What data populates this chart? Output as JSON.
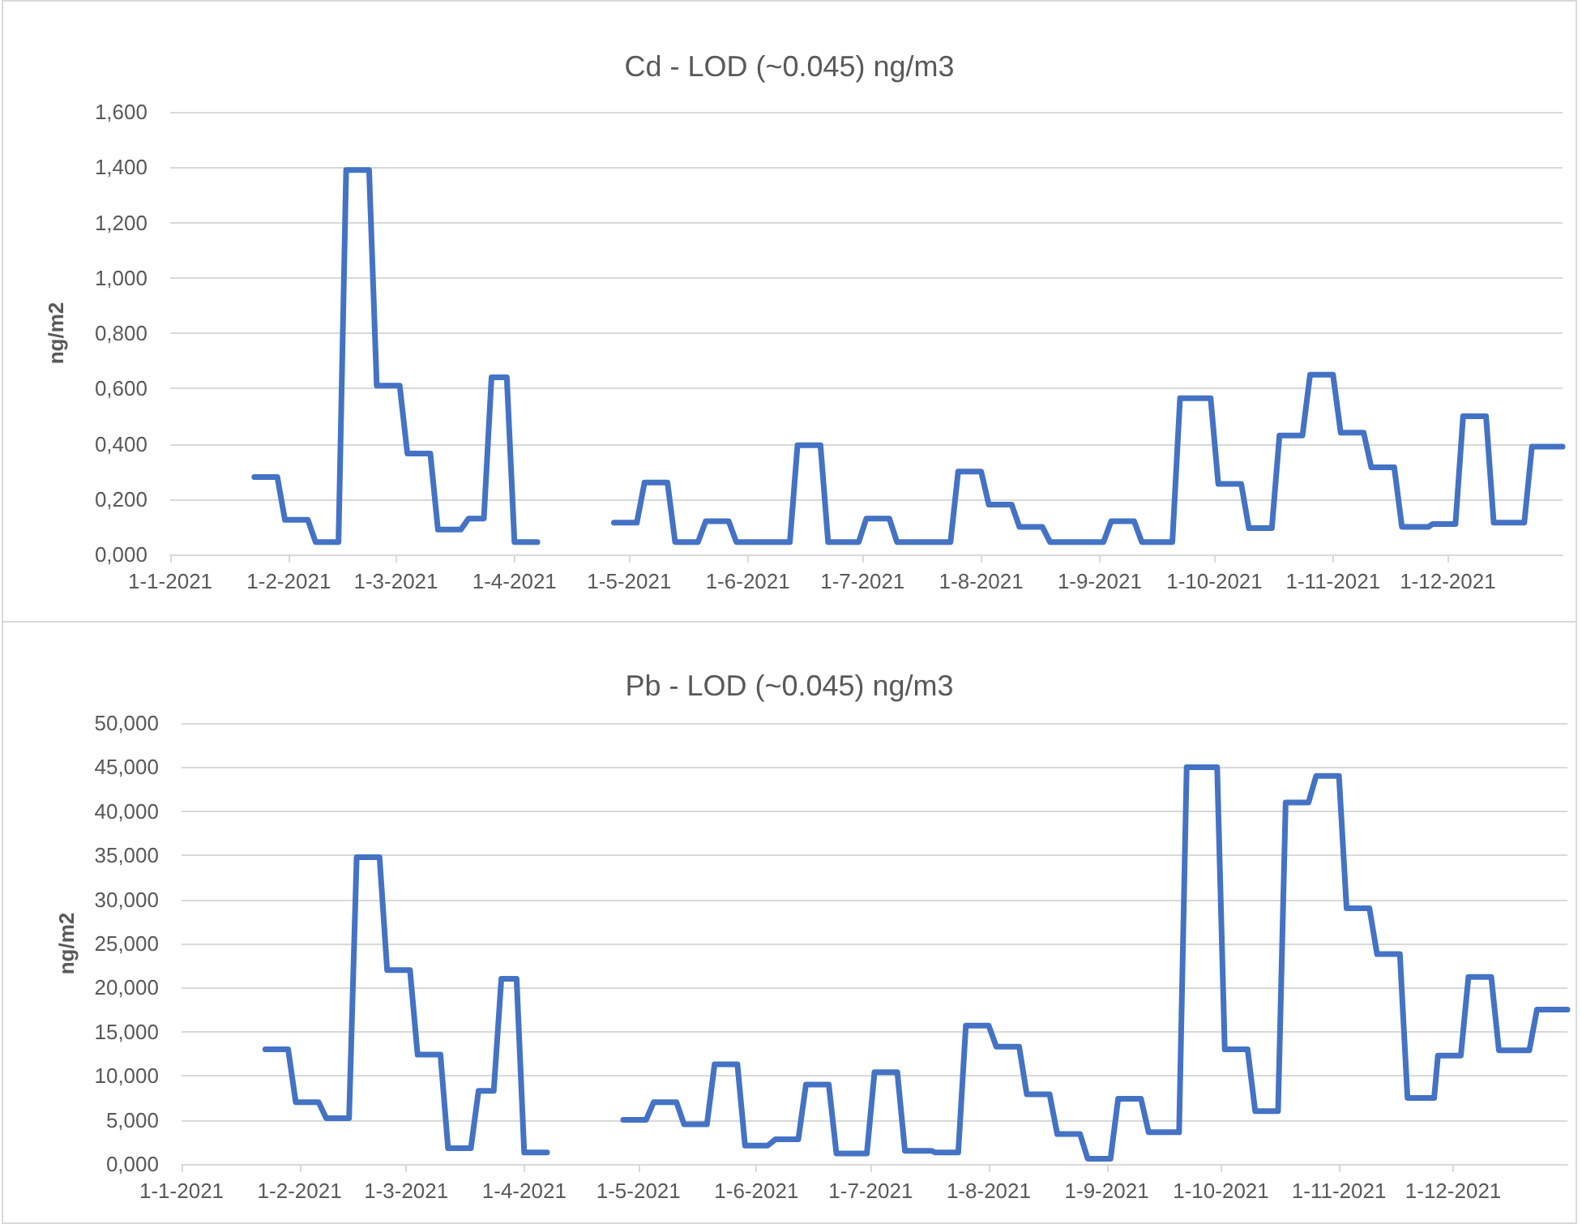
{
  "chart_data": [
    {
      "type": "line",
      "title": "Cd - LOD (~0.045) ng/m3",
      "ylabel": "ng/m2",
      "x": [
        "2021-01-23",
        "2021-01-29",
        "2021-01-31",
        "2021-02-06",
        "2021-02-08",
        "2021-02-14",
        "2021-02-16",
        "2021-02-22",
        "2021-02-24",
        "2021-03-02",
        "2021-03-04",
        "2021-03-10",
        "2021-03-12",
        "2021-03-18",
        "2021-03-20",
        "2021-03-24",
        "2021-03-26",
        "2021-03-30",
        "2021-04-01",
        "2021-04-07",
        "2021-04-17",
        "2021-04-27",
        "2021-05-03",
        "2021-05-05",
        "2021-05-11",
        "2021-05-13",
        "2021-05-19",
        "2021-05-21",
        "2021-05-27",
        "2021-05-29",
        "2021-06-04",
        "2021-06-06",
        "2021-06-12",
        "2021-06-14",
        "2021-06-20",
        "2021-06-22",
        "2021-06-30",
        "2021-07-02",
        "2021-07-08",
        "2021-07-10",
        "2021-07-17",
        "2021-07-18",
        "2021-07-24",
        "2021-07-26",
        "2021-08-01",
        "2021-08-03",
        "2021-08-09",
        "2021-08-11",
        "2021-08-17",
        "2021-08-19",
        "2021-08-25",
        "2021-08-27",
        "2021-09-02",
        "2021-09-04",
        "2021-09-10",
        "2021-09-12",
        "2021-09-20",
        "2021-09-22",
        "2021-09-30",
        "2021-10-02",
        "2021-10-08",
        "2021-10-10",
        "2021-10-16",
        "2021-10-18",
        "2021-10-24",
        "2021-10-26",
        "2021-11-01",
        "2021-11-03",
        "2021-11-09",
        "2021-11-11",
        "2021-11-17",
        "2021-11-19",
        "2021-11-26",
        "2021-11-27",
        "2021-12-03",
        "2021-12-05",
        "2021-12-11",
        "2021-12-13",
        "2021-12-21",
        "2021-12-23",
        "2021-12-31"
      ],
      "series": [
        {
          "color": "#4472c4",
          "values": [
            0.28,
            0.28,
            0.125,
            0.125,
            0.045,
            0.045,
            1.39,
            1.39,
            0.61,
            0.61,
            0.365,
            0.365,
            0.09,
            0.09,
            0.13,
            0.13,
            0.64,
            0.64,
            0.045,
            0.045,
            null,
            0.115,
            0.115,
            0.26,
            0.26,
            0.045,
            0.045,
            0.12,
            0.12,
            0.045,
            0.045,
            0.045,
            0.045,
            0.395,
            0.395,
            0.045,
            0.045,
            0.13,
            0.13,
            0.045,
            0.045,
            0.045,
            0.045,
            0.3,
            0.3,
            0.18,
            0.18,
            0.1,
            0.1,
            0.045,
            0.045,
            0.045,
            0.045,
            0.12,
            0.12,
            0.045,
            0.045,
            0.565,
            0.565,
            0.255,
            0.255,
            0.095,
            0.095,
            0.43,
            0.43,
            0.65,
            0.65,
            0.44,
            0.44,
            0.315,
            0.315,
            0.1,
            0.1,
            0.11,
            0.11,
            0.5,
            0.5,
            0.115,
            0.115,
            0.39,
            0.39
          ]
        }
      ],
      "xlim": [
        "2021-01-01",
        "2021-12-31"
      ],
      "xticks": [
        {
          "value": "2021-01-01",
          "label": "1-1-2021"
        },
        {
          "value": "2021-02-01",
          "label": "1-2-2021"
        },
        {
          "value": "2021-03-01",
          "label": "1-3-2021"
        },
        {
          "value": "2021-04-01",
          "label": "1-4-2021"
        },
        {
          "value": "2021-05-01",
          "label": "1-5-2021"
        },
        {
          "value": "2021-06-01",
          "label": "1-6-2021"
        },
        {
          "value": "2021-07-01",
          "label": "1-7-2021"
        },
        {
          "value": "2021-08-01",
          "label": "1-8-2021"
        },
        {
          "value": "2021-09-01",
          "label": "1-9-2021"
        },
        {
          "value": "2021-10-01",
          "label": "1-10-2021"
        },
        {
          "value": "2021-11-01",
          "label": "1-11-2021"
        },
        {
          "value": "2021-12-01",
          "label": "1-12-2021"
        }
      ],
      "ylim": [
        0,
        1.6
      ],
      "yticks": [
        {
          "value": 0,
          "label": "0,000"
        },
        {
          "value": 0.2,
          "label": "0,200"
        },
        {
          "value": 0.4,
          "label": "0,400"
        },
        {
          "value": 0.6,
          "label": "0,600"
        },
        {
          "value": 0.8,
          "label": "0,800"
        },
        {
          "value": 1,
          "label": "1,000"
        },
        {
          "value": 1.2,
          "label": "1,200"
        },
        {
          "value": 1.4,
          "label": "1,400"
        },
        {
          "value": 1.6,
          "label": "1,600"
        }
      ],
      "grid": "y",
      "marker": "none",
      "line_style": "solid"
    },
    {
      "type": "line",
      "title": "Pb - LOD (~0.045) ng/m3",
      "ylabel": "ng/m2",
      "x": [
        "2021-01-23",
        "2021-01-29",
        "2021-01-31",
        "2021-02-06",
        "2021-02-08",
        "2021-02-14",
        "2021-02-16",
        "2021-02-22",
        "2021-02-24",
        "2021-03-02",
        "2021-03-04",
        "2021-03-10",
        "2021-03-12",
        "2021-03-18",
        "2021-03-20",
        "2021-03-24",
        "2021-03-26",
        "2021-03-30",
        "2021-04-01",
        "2021-04-07",
        "2021-04-17",
        "2021-04-27",
        "2021-05-03",
        "2021-05-05",
        "2021-05-11",
        "2021-05-13",
        "2021-05-19",
        "2021-05-21",
        "2021-05-27",
        "2021-05-29",
        "2021-06-04",
        "2021-06-06",
        "2021-06-12",
        "2021-06-14",
        "2021-06-20",
        "2021-06-22",
        "2021-06-30",
        "2021-07-02",
        "2021-07-08",
        "2021-07-10",
        "2021-07-17",
        "2021-07-18",
        "2021-07-24",
        "2021-07-26",
        "2021-08-01",
        "2021-08-03",
        "2021-08-09",
        "2021-08-11",
        "2021-08-17",
        "2021-08-19",
        "2021-08-25",
        "2021-08-27",
        "2021-09-02",
        "2021-09-04",
        "2021-09-10",
        "2021-09-12",
        "2021-09-20",
        "2021-09-22",
        "2021-09-30",
        "2021-10-02",
        "2021-10-08",
        "2021-10-10",
        "2021-10-16",
        "2021-10-18",
        "2021-10-24",
        "2021-10-26",
        "2021-11-01",
        "2021-11-03",
        "2021-11-09",
        "2021-11-11",
        "2021-11-17",
        "2021-11-19",
        "2021-11-26",
        "2021-11-27",
        "2021-12-03",
        "2021-12-05",
        "2021-12-11",
        "2021-12-13",
        "2021-12-21",
        "2021-12-23",
        "2021-12-31"
      ],
      "series": [
        {
          "color": "#4472c4",
          "values": [
            13,
            13,
            7,
            7,
            5.2,
            5.2,
            34.8,
            34.8,
            22,
            22,
            12.4,
            12.4,
            1.8,
            1.8,
            8.3,
            8.3,
            21,
            21,
            1.3,
            1.3,
            null,
            5,
            5,
            7,
            7,
            4.5,
            4.5,
            11.3,
            11.3,
            2.1,
            2.1,
            2.8,
            2.8,
            9,
            9,
            1.2,
            1.2,
            10.4,
            10.4,
            1.5,
            1.5,
            1.3,
            1.3,
            15.7,
            15.7,
            13.3,
            13.3,
            7.9,
            7.9,
            3.4,
            3.4,
            0.6,
            0.6,
            7.4,
            7.4,
            3.6,
            3.6,
            45,
            45,
            13,
            13,
            6,
            6,
            41,
            41,
            44,
            44,
            29,
            29,
            23.8,
            23.8,
            7.5,
            7.5,
            12.3,
            12.3,
            21.2,
            21.2,
            12.9,
            12.9,
            17.5,
            17.5
          ]
        }
      ],
      "xlim": [
        "2021-01-01",
        "2021-12-31"
      ],
      "xticks": [
        {
          "value": "2021-01-01",
          "label": "1-1-2021"
        },
        {
          "value": "2021-02-01",
          "label": "1-2-2021"
        },
        {
          "value": "2021-03-01",
          "label": "1-3-2021"
        },
        {
          "value": "2021-04-01",
          "label": "1-4-2021"
        },
        {
          "value": "2021-05-01",
          "label": "1-5-2021"
        },
        {
          "value": "2021-06-01",
          "label": "1-6-2021"
        },
        {
          "value": "2021-07-01",
          "label": "1-7-2021"
        },
        {
          "value": "2021-08-01",
          "label": "1-8-2021"
        },
        {
          "value": "2021-09-01",
          "label": "1-9-2021"
        },
        {
          "value": "2021-10-01",
          "label": "1-10-2021"
        },
        {
          "value": "2021-11-01",
          "label": "1-11-2021"
        },
        {
          "value": "2021-12-01",
          "label": "1-12-2021"
        }
      ],
      "ylim": [
        0,
        50
      ],
      "yticks": [
        {
          "value": 0,
          "label": "0,000"
        },
        {
          "value": 5,
          "label": "5,000"
        },
        {
          "value": 10,
          "label": "10,000"
        },
        {
          "value": 15,
          "label": "15,000"
        },
        {
          "value": 20,
          "label": "20,000"
        },
        {
          "value": 25,
          "label": "25,000"
        },
        {
          "value": 30,
          "label": "30,000"
        },
        {
          "value": 35,
          "label": "35,000"
        },
        {
          "value": 40,
          "label": "40,000"
        },
        {
          "value": 45,
          "label": "45,000"
        },
        {
          "value": 50,
          "label": "50,000"
        }
      ],
      "grid": "y",
      "marker": "none",
      "line_style": "solid"
    }
  ]
}
